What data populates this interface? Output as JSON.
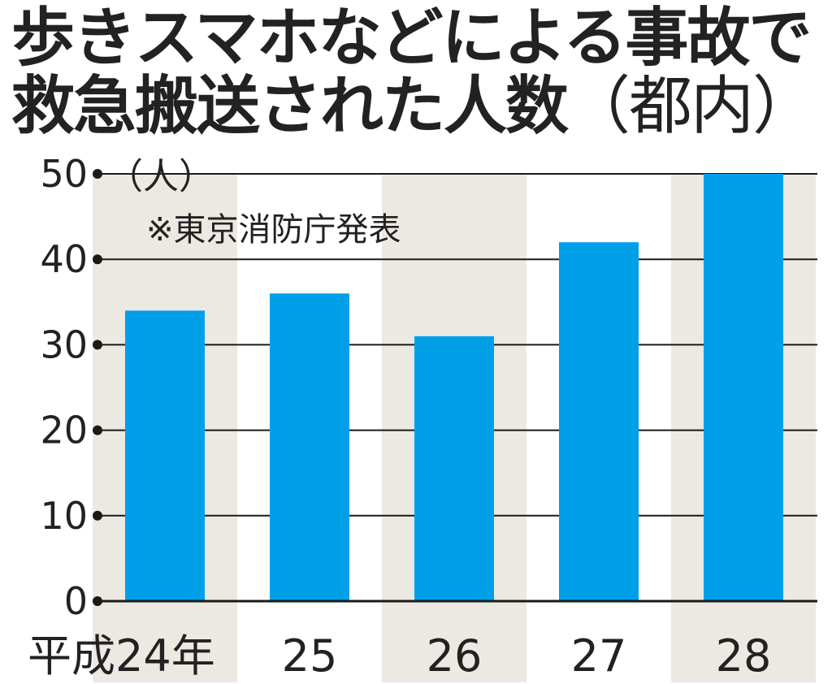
{
  "chart_data": {
    "type": "bar",
    "title_line1": "歩きスマホなどによる事故で",
    "title_line2": "救急搬送された人数",
    "title_paren": "（都内）",
    "ylabel": "（人）",
    "source_note": "※東京消防庁発表",
    "categories": [
      "平成24年",
      "25",
      "26",
      "27",
      "28"
    ],
    "values": [
      34,
      36,
      31,
      42,
      50
    ],
    "y_ticks": [
      "0",
      "10",
      "20",
      "30",
      "40",
      "50"
    ],
    "ylim": [
      0,
      50
    ],
    "grid": true,
    "bar_color": "#00a0e9",
    "band_color": "#ece9e2"
  }
}
